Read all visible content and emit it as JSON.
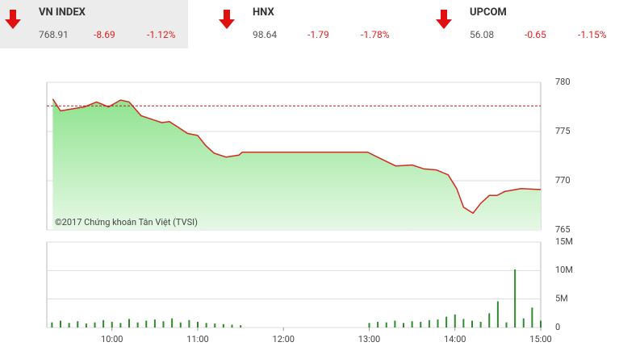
{
  "indices": [
    {
      "name": "VN INDEX",
      "value": "768.91",
      "change": "-8.69",
      "percent": "-1.12%"
    },
    {
      "name": "HNX",
      "value": "98.64",
      "change": "-1.79",
      "percent": "-1.78%"
    },
    {
      "name": "UPCOM",
      "value": "56.08",
      "change": "-0.65",
      "percent": "-1.15%"
    }
  ],
  "chart_data": [
    {
      "type": "line",
      "annotation": "©2017 Chứng khoán Tân Việt (TVSI)",
      "x": [
        9.31,
        9.4,
        9.54,
        9.68,
        9.82,
        9.96,
        10.1,
        10.2,
        10.34,
        10.48,
        10.58,
        10.67,
        10.76,
        10.88,
        11.0,
        11.09,
        11.19,
        11.33,
        11.48,
        11.52,
        12.98,
        13.12,
        13.31,
        13.5,
        13.64,
        13.78,
        13.92,
        14.02,
        14.1,
        14.21,
        14.3,
        14.4,
        14.49,
        14.58,
        14.77,
        15.0
      ],
      "series": [
        {
          "color": "#d42a1e",
          "fill": "#8fe38f",
          "values": [
            778.3,
            777.1,
            777.3,
            777.5,
            778.0,
            777.5,
            778.2,
            778.0,
            776.6,
            776.2,
            775.9,
            776.0,
            775.5,
            774.8,
            774.6,
            773.6,
            772.8,
            772.4,
            772.6,
            772.9,
            772.9,
            772.3,
            771.5,
            771.6,
            771.2,
            771.1,
            770.6,
            769.2,
            767.3,
            766.7,
            767.7,
            768.5,
            768.5,
            768.9,
            769.2,
            769.1
          ]
        }
      ],
      "reference": 777.6,
      "reference_color": "#b22222",
      "xlim": [
        9.24,
        15.0
      ],
      "ylim": [
        765,
        780
      ],
      "yticks": [
        765,
        770,
        775,
        780
      ],
      "grid": true
    },
    {
      "type": "bar",
      "x": [
        9.3,
        9.4,
        9.5,
        9.6,
        9.7,
        9.8,
        9.9,
        10.0,
        10.1,
        10.2,
        10.3,
        10.4,
        10.5,
        10.6,
        10.7,
        10.8,
        10.9,
        11.0,
        11.1,
        11.2,
        11.3,
        11.4,
        11.5,
        13.0,
        13.1,
        13.2,
        13.3,
        13.4,
        13.5,
        13.6,
        13.7,
        13.8,
        13.9,
        14.0,
        14.1,
        14.2,
        14.3,
        14.4,
        14.5,
        14.6,
        14.7,
        14.8,
        14.9,
        15.0
      ],
      "series": [
        {
          "color": "#2e8b2e",
          "values": [
            0.9,
            1.2,
            0.8,
            1.1,
            0.7,
            0.9,
            1.3,
            1.0,
            0.8,
            1.5,
            0.9,
            1.2,
            1.4,
            1.1,
            1.6,
            0.9,
            1.3,
            1.0,
            0.8,
            0.7,
            0.6,
            0.5,
            0.4,
            0.8,
            1.0,
            0.9,
            1.2,
            0.8,
            1.1,
            1.0,
            1.3,
            1.4,
            1.9,
            2.3,
            1.5,
            1.2,
            1.0,
            2.5,
            4.6,
            0.9,
            10.2,
            1.6,
            3.5,
            1.2
          ]
        }
      ],
      "xlim": [
        9.24,
        15.0
      ],
      "xticks": [
        {
          "value": 10,
          "label": "10:00"
        },
        {
          "value": 11,
          "label": "11:00"
        },
        {
          "value": 12,
          "label": "12:00"
        },
        {
          "value": 13,
          "label": "13:00"
        },
        {
          "value": 14,
          "label": "14:00"
        },
        {
          "value": 15,
          "label": "15:00"
        }
      ],
      "ylim": [
        0,
        15
      ],
      "yticks": [
        0,
        {
          "value": 5,
          "label": "5M"
        },
        {
          "value": 10,
          "label": "10M"
        },
        {
          "value": 15,
          "label": "15M"
        }
      ],
      "grid": true
    }
  ]
}
